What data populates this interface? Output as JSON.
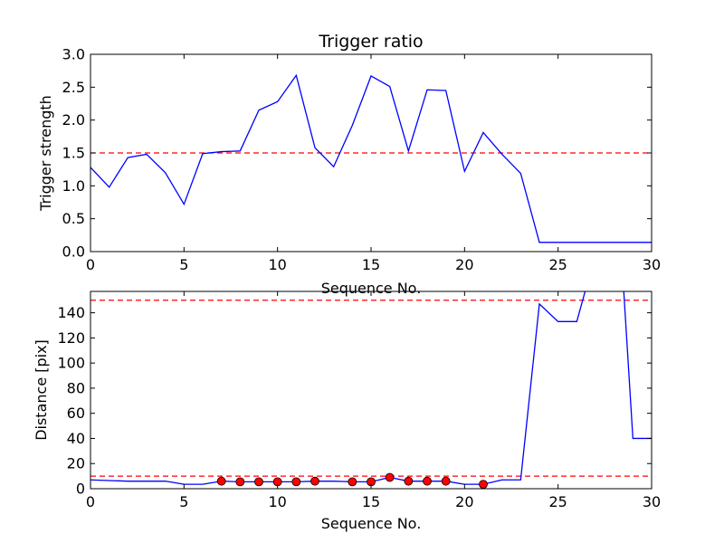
{
  "chart_data": [
    {
      "type": "line",
      "title": "Trigger ratio",
      "xlabel": "Sequence No.",
      "ylabel": "Trigger strength",
      "xlim": [
        0,
        30
      ],
      "ylim": [
        0,
        3.0
      ],
      "xticks": [
        "0",
        "5",
        "10",
        "15",
        "20",
        "25",
        "30"
      ],
      "yticks": [
        "0.0",
        "0.5",
        "1.0",
        "1.5",
        "2.0",
        "2.5",
        "3.0"
      ],
      "series": [
        {
          "color": "#0000ff",
          "x": [
            0,
            1,
            2,
            3,
            4,
            5,
            6,
            7,
            8,
            9,
            10,
            11,
            12,
            13,
            14,
            15,
            16,
            17,
            18,
            19,
            20,
            21,
            22,
            23,
            24,
            25,
            26,
            27,
            28,
            29,
            30
          ],
          "y": [
            1.28,
            0.98,
            1.43,
            1.48,
            1.2,
            0.72,
            1.49,
            1.52,
            1.53,
            2.15,
            2.28,
            2.68,
            1.58,
            1.29,
            1.92,
            2.67,
            2.51,
            1.53,
            2.46,
            2.45,
            1.22,
            1.81,
            1.48,
            1.19,
            0.14,
            0.14,
            0.14,
            0.14,
            0.14,
            0.14,
            0.14
          ]
        }
      ],
      "hlines": [
        {
          "y": 1.5,
          "color": "#ff0000",
          "style": "dashed"
        }
      ]
    },
    {
      "type": "line",
      "title": "",
      "xlabel": "Sequence No.",
      "ylabel": "Distance [pix]",
      "xlim": [
        0,
        30
      ],
      "ylim": [
        0,
        157
      ],
      "xticks": [
        "0",
        "5",
        "10",
        "15",
        "20",
        "25",
        "30"
      ],
      "yticks": [
        "0",
        "20",
        "40",
        "60",
        "80",
        "100",
        "120",
        "140"
      ],
      "series": [
        {
          "color": "#0000ff",
          "x": [
            0,
            1,
            2,
            3,
            4,
            5,
            6,
            7,
            8,
            9,
            10,
            11,
            12,
            13,
            14,
            15,
            16,
            17,
            18,
            19,
            20,
            21,
            22,
            23,
            24,
            25,
            26,
            26.5,
            28.5,
            29,
            30
          ],
          "y": [
            7,
            6.5,
            6,
            6,
            6,
            3.5,
            3.5,
            6,
            5.5,
            5.5,
            5.5,
            5.5,
            6,
            6,
            5.5,
            5.5,
            9,
            6,
            6,
            6,
            3.5,
            3.5,
            7,
            7,
            147,
            133,
            133,
            160,
            160,
            40,
            40
          ]
        }
      ],
      "markers": {
        "color": "#ff0000",
        "x": [
          7,
          8,
          9,
          10,
          11,
          12,
          14,
          15,
          16,
          17,
          18,
          19,
          21
        ],
        "y": [
          6,
          5.5,
          5.5,
          5.5,
          5.5,
          6,
          5.5,
          5.5,
          9,
          6,
          6,
          6,
          3.5
        ]
      },
      "hlines": [
        {
          "y": 150,
          "color": "#ff0000",
          "style": "dashed"
        },
        {
          "y": 10,
          "color": "#ff0000",
          "style": "dashed"
        }
      ]
    }
  ]
}
